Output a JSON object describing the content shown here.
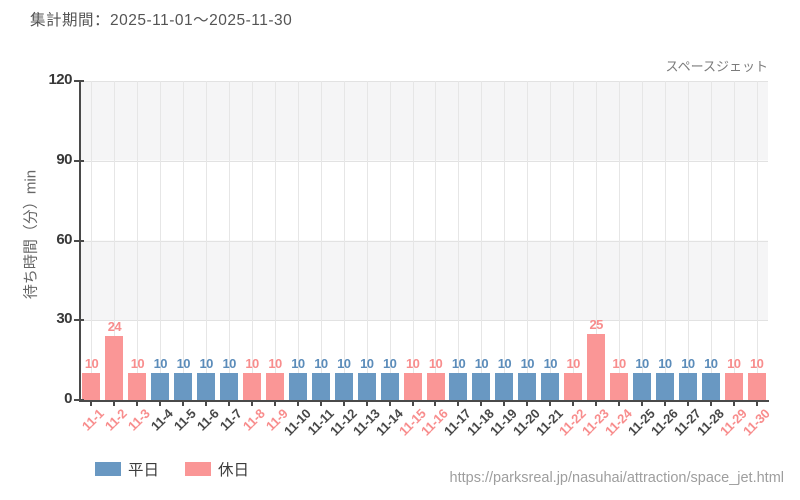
{
  "header": {
    "title": "集計期間：2025-11-01～2025-11-30"
  },
  "footer": {
    "source_url": "https://parksreal.jp/nasuhai/attraction/space_jet.html"
  },
  "chart_data": {
    "type": "bar",
    "title": "スペースジェット",
    "ylabel": "待ち時間（分）min",
    "xlabel": "",
    "ylim": [
      0,
      120
    ],
    "yticks": [
      0,
      30,
      60,
      90,
      120
    ],
    "grid": true,
    "legend_position": "bottom-left",
    "categories": [
      "11-1",
      "11-2",
      "11-3",
      "11-4",
      "11-5",
      "11-6",
      "11-7",
      "11-8",
      "11-9",
      "11-10",
      "11-11",
      "11-12",
      "11-13",
      "11-14",
      "11-15",
      "11-16",
      "11-17",
      "11-18",
      "11-19",
      "11-20",
      "11-21",
      "11-22",
      "11-23",
      "11-24",
      "11-25",
      "11-26",
      "11-27",
      "11-28",
      "11-29",
      "11-30"
    ],
    "values": [
      10,
      24,
      10,
      10,
      10,
      10,
      10,
      10,
      10,
      10,
      10,
      10,
      10,
      10,
      10,
      10,
      10,
      10,
      10,
      10,
      10,
      10,
      25,
      10,
      10,
      10,
      10,
      10,
      10,
      10
    ],
    "day_types": [
      "holiday",
      "holiday",
      "holiday",
      "weekday",
      "weekday",
      "weekday",
      "weekday",
      "holiday",
      "holiday",
      "weekday",
      "weekday",
      "weekday",
      "weekday",
      "weekday",
      "holiday",
      "holiday",
      "weekday",
      "weekday",
      "weekday",
      "weekday",
      "weekday",
      "holiday",
      "holiday",
      "holiday",
      "weekday",
      "weekday",
      "weekday",
      "weekday",
      "holiday",
      "holiday"
    ],
    "series": [
      {
        "name": "平日",
        "key": "weekday",
        "color": "#6998c2",
        "label_color": "#5b8cba",
        "tick_color": "#484848"
      },
      {
        "name": "休日",
        "key": "holiday",
        "color": "#fa9696",
        "label_color": "#f88d8d",
        "tick_color": "#f88d8d"
      }
    ],
    "colors": {
      "band_gray": "#f5f5f6",
      "gridline": "#e6e6e6",
      "axis": "#4a4a4a"
    }
  }
}
